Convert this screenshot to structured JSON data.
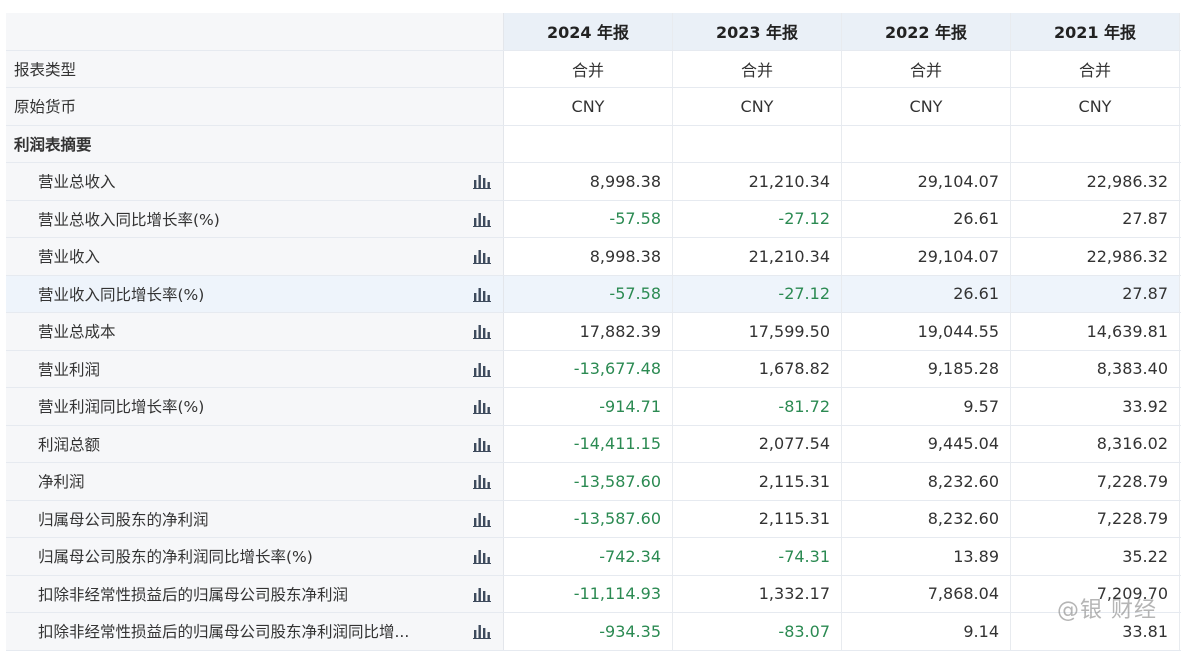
{
  "header": {
    "years": [
      "2024 年报",
      "2023 年报",
      "2022 年报",
      "2021 年报"
    ]
  },
  "meta_rows": [
    {
      "label": "报表类型",
      "values": [
        "合并",
        "合并",
        "合并",
        "合并"
      ]
    },
    {
      "label": "原始货币",
      "values": [
        "CNY",
        "CNY",
        "CNY",
        "CNY"
      ]
    }
  ],
  "section": {
    "label": "利润表摘要"
  },
  "icons": {
    "chart": "bar-chart-icon"
  },
  "colors": {
    "negative": "#2b8a52",
    "header_bg": "#eaf0f7",
    "highlight_bg": "#eef4fb"
  },
  "items": [
    {
      "label": "营业总收入",
      "values": [
        "8,998.38",
        "21,210.34",
        "29,104.07",
        "22,986.32"
      ]
    },
    {
      "label": "营业总收入同比增长率(%)",
      "values": [
        "-57.58",
        "-27.12",
        "26.61",
        "27.87"
      ]
    },
    {
      "label": "营业收入",
      "values": [
        "8,998.38",
        "21,210.34",
        "29,104.07",
        "22,986.32"
      ]
    },
    {
      "label": "营业收入同比增长率(%)",
      "values": [
        "-57.58",
        "-27.12",
        "26.61",
        "27.87"
      ],
      "highlighted": true
    },
    {
      "label": "营业总成本",
      "values": [
        "17,882.39",
        "17,599.50",
        "19,044.55",
        "14,639.81"
      ]
    },
    {
      "label": "营业利润",
      "values": [
        "-13,677.48",
        "1,678.82",
        "9,185.28",
        "8,383.40"
      ]
    },
    {
      "label": "营业利润同比增长率(%)",
      "values": [
        "-914.71",
        "-81.72",
        "9.57",
        "33.92"
      ]
    },
    {
      "label": "利润总额",
      "values": [
        "-14,411.15",
        "2,077.54",
        "9,445.04",
        "8,316.02"
      ]
    },
    {
      "label": "净利润",
      "values": [
        "-13,587.60",
        "2,115.31",
        "8,232.60",
        "7,228.79"
      ]
    },
    {
      "label": "归属母公司股东的净利润",
      "values": [
        "-13,587.60",
        "2,115.31",
        "8,232.60",
        "7,228.79"
      ]
    },
    {
      "label": "归属母公司股东的净利润同比增长率(%)",
      "values": [
        "-742.34",
        "-74.31",
        "13.89",
        "35.22"
      ]
    },
    {
      "label": "扣除非经常性损益后的归属母公司股东净利润",
      "values": [
        "-11,114.93",
        "1,332.17",
        "7,868.04",
        "7,209.70"
      ]
    },
    {
      "label": "扣除非经常性损益后的归属母公司股东净利润同比增...",
      "values": [
        "-934.35",
        "-83.07",
        "9.14",
        "33.81"
      ]
    }
  ],
  "watermark": "@银 财经"
}
